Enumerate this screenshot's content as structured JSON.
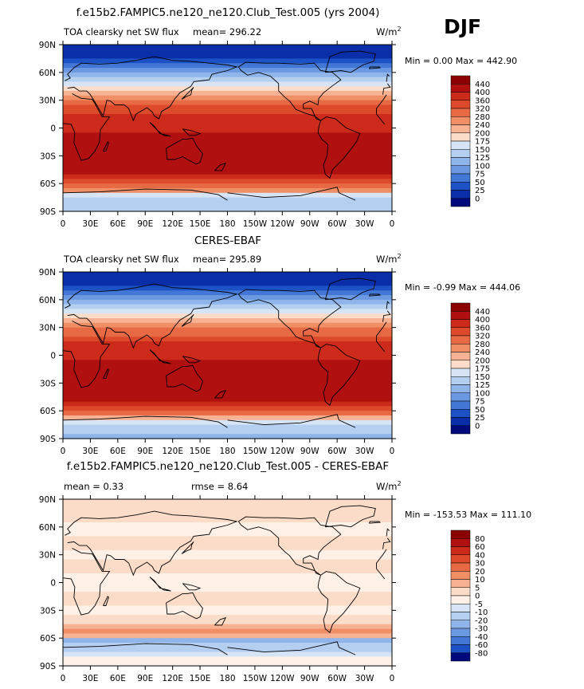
{
  "season": "DJF",
  "x_ticks": [
    "0",
    "30E",
    "60E",
    "90E",
    "120E",
    "150E",
    "180",
    "150W",
    "120W",
    "90W",
    "60W",
    "30W",
    "0"
  ],
  "y_ticks": [
    "90N",
    "60N",
    "30N",
    "0",
    "30S",
    "60S",
    "90S"
  ],
  "chart_data": [
    {
      "type": "heatmap",
      "panel": "model",
      "title": "f.e15b2.FAMPIC5.ne120_ne120.Club_Test.005 (yrs 2004)",
      "left_label": "TOA clearsky net SW flux",
      "mean_label": "mean= 296.22",
      "mean": 296.22,
      "units_main": "W/m",
      "units_sup": "2",
      "minmax_label": "Min =    0.00 Max = 442.90",
      "min": 0.0,
      "max": 442.9,
      "levels": [
        "440",
        "400",
        "360",
        "320",
        "280",
        "240",
        "200",
        "175",
        "150",
        "125",
        "100",
        "75",
        "50",
        "25",
        "0"
      ],
      "colors": [
        "#8b0000",
        "#b01010",
        "#cc2a1a",
        "#dd4a2b",
        "#e86a45",
        "#f08e66",
        "#f6b292",
        "#fbdcc8",
        "#d6e4f6",
        "#b4cff0",
        "#8fb5ea",
        "#6a98e1",
        "#4277d6",
        "#1c52c6",
        "#0a2ea8",
        "#000a7a"
      ],
      "zonal_profile": [
        {
          "lat": 90,
          "value": 10
        },
        {
          "lat": 75,
          "value": 25
        },
        {
          "lat": 60,
          "value": 95
        },
        {
          "lat": 45,
          "value": 175
        },
        {
          "lat": 30,
          "value": 280
        },
        {
          "lat": 15,
          "value": 360
        },
        {
          "lat": 0,
          "value": 395
        },
        {
          "lat": -15,
          "value": 420
        },
        {
          "lat": -30,
          "value": 435
        },
        {
          "lat": -45,
          "value": 425
        },
        {
          "lat": -60,
          "value": 340
        },
        {
          "lat": -75,
          "value": 140
        },
        {
          "lat": -90,
          "value": 130
        }
      ]
    },
    {
      "type": "heatmap",
      "panel": "observation",
      "title": "CERES-EBAF",
      "left_label": "TOA clearsky net SW flux",
      "mean_label": "mean= 295.89",
      "mean": 295.89,
      "units_main": "W/m",
      "units_sup": "2",
      "minmax_label": "Min =  -0.99 Max = 444.06",
      "min": -0.99,
      "max": 444.06,
      "levels": [
        "440",
        "400",
        "360",
        "320",
        "280",
        "240",
        "200",
        "175",
        "150",
        "125",
        "100",
        "75",
        "50",
        "25",
        "0"
      ],
      "colors": [
        "#8b0000",
        "#b01010",
        "#cc2a1a",
        "#dd4a2b",
        "#e86a45",
        "#f08e66",
        "#f6b292",
        "#fbdcc8",
        "#d6e4f6",
        "#b4cff0",
        "#8fb5ea",
        "#6a98e1",
        "#4277d6",
        "#1c52c6",
        "#0a2ea8",
        "#000a7a"
      ],
      "zonal_profile": [
        {
          "lat": 90,
          "value": 5
        },
        {
          "lat": 75,
          "value": 20
        },
        {
          "lat": 60,
          "value": 90
        },
        {
          "lat": 45,
          "value": 170
        },
        {
          "lat": 30,
          "value": 275
        },
        {
          "lat": 15,
          "value": 355
        },
        {
          "lat": 0,
          "value": 390
        },
        {
          "lat": -15,
          "value": 418
        },
        {
          "lat": -30,
          "value": 436
        },
        {
          "lat": -45,
          "value": 428
        },
        {
          "lat": -60,
          "value": 345
        },
        {
          "lat": -75,
          "value": 130
        },
        {
          "lat": -90,
          "value": 120
        }
      ]
    },
    {
      "type": "heatmap",
      "panel": "difference",
      "title": "f.e15b2.FAMPIC5.ne120_ne120.Club_Test.005 - CERES-EBAF",
      "mean_label": "mean =    0.33",
      "rmse_label": "rmse =    8.64",
      "mean": 0.33,
      "rmse": 8.64,
      "units_main": "W/m",
      "units_sup": "2",
      "minmax_label": "Min = -153.53 Max = 111.10",
      "min": -153.53,
      "max": 111.1,
      "levels": [
        "80",
        "60",
        "40",
        "30",
        "20",
        "10",
        "5",
        "0",
        "-5",
        "-10",
        "-20",
        "-30",
        "-40",
        "-60",
        "-80"
      ],
      "colors": [
        "#8b0000",
        "#b01010",
        "#cc2a1a",
        "#dd4a2b",
        "#e86a45",
        "#f08e66",
        "#f6b292",
        "#fbdcc8",
        "#fdf0e6",
        "#d6e4f6",
        "#b4cff0",
        "#8fb5ea",
        "#6a98e1",
        "#4277d6",
        "#1c52c6",
        "#000a7a"
      ],
      "zonal_profile": [
        {
          "lat": 90,
          "value": 2
        },
        {
          "lat": 75,
          "value": 3
        },
        {
          "lat": 60,
          "value": -3
        },
        {
          "lat": 45,
          "value": 2
        },
        {
          "lat": 30,
          "value": -2
        },
        {
          "lat": 15,
          "value": 3
        },
        {
          "lat": 0,
          "value": -4
        },
        {
          "lat": -15,
          "value": 2
        },
        {
          "lat": -30,
          "value": -2
        },
        {
          "lat": -45,
          "value": 4
        },
        {
          "lat": -55,
          "value": 25
        },
        {
          "lat": -62,
          "value": -30
        },
        {
          "lat": -75,
          "value": -6
        },
        {
          "lat": -90,
          "value": -2
        }
      ]
    }
  ]
}
